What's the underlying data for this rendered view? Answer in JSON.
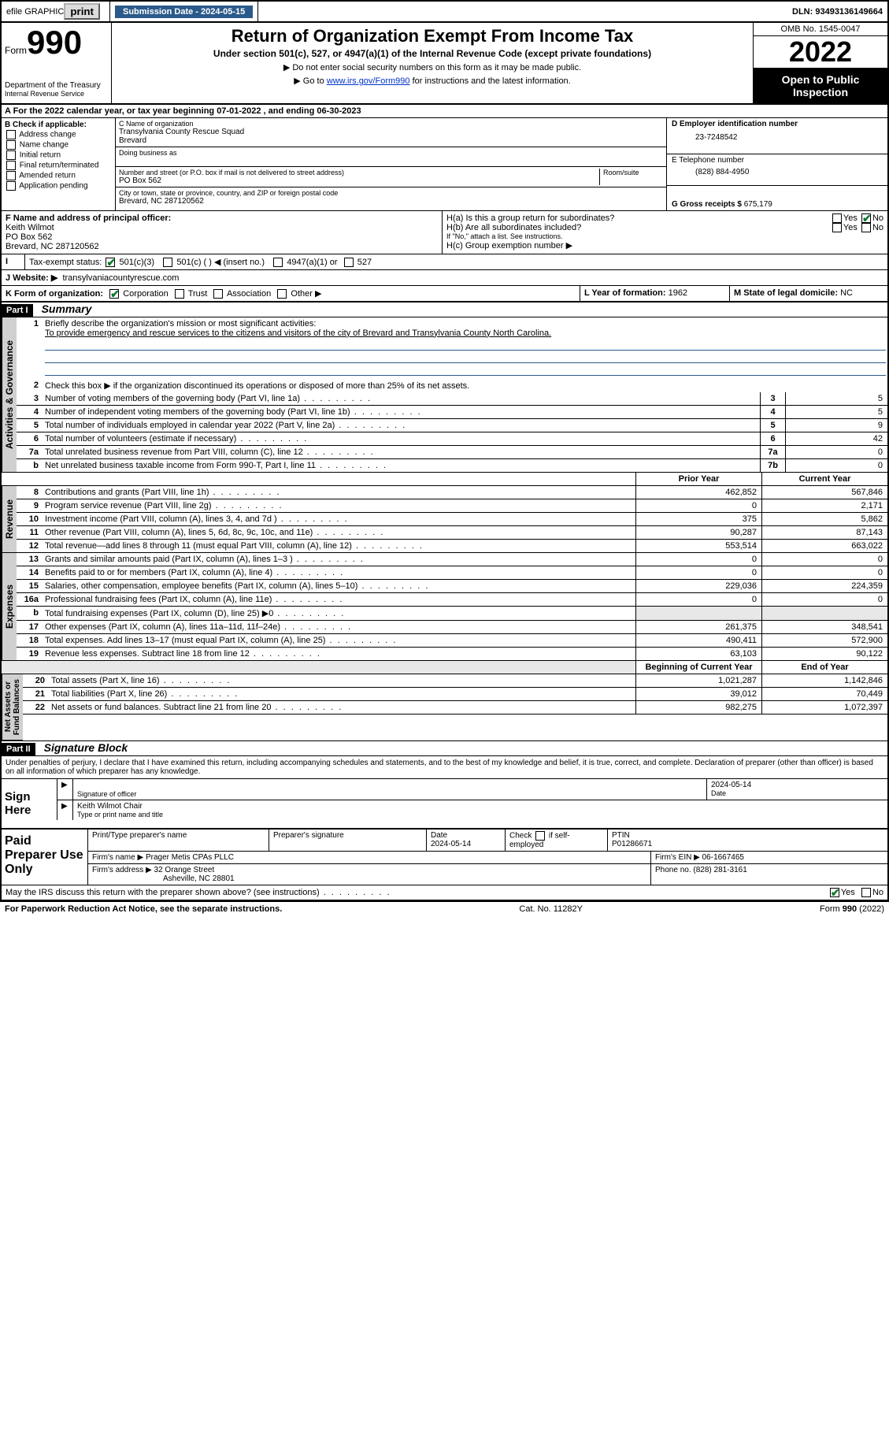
{
  "topbar": {
    "efile": "efile GRAPHIC",
    "print": "print",
    "sub_label": "Submission Date - 2024-05-15",
    "dln": "DLN: 93493136149664"
  },
  "header": {
    "form_word": "Form",
    "form_num": "990",
    "dept": "Department of the Treasury",
    "irs": "Internal Revenue Service",
    "title": "Return of Organization Exempt From Income Tax",
    "sub1": "Under section 501(c), 527, or 4947(a)(1) of the Internal Revenue Code (except private foundations)",
    "sub2": "▶ Do not enter social security numbers on this form as it may be made public.",
    "sub3_pre": "▶ Go to ",
    "sub3_link": "www.irs.gov/Form990",
    "sub3_post": " for instructions and the latest information.",
    "omb": "OMB No. 1545-0047",
    "year": "2022",
    "open_pub": "Open to Public Inspection"
  },
  "rowA": "A For the 2022 calendar year, or tax year beginning 07-01-2022    , and ending 06-30-2023",
  "blkB": {
    "title": "B Check if applicable:",
    "items": [
      "Address change",
      "Name change",
      "Initial return",
      "Final return/terminated",
      "Amended return",
      "Application pending"
    ]
  },
  "blkC": {
    "c_label": "C Name of organization",
    "org1": "Transylvania County Rescue Squad",
    "org2": "Brevard",
    "dba_label": "Doing business as",
    "addr_label": "Number and street (or P.O. box if mail is not delivered to street address)",
    "room_label": "Room/suite",
    "addr": "PO Box 562",
    "city_label": "City or town, state or province, country, and ZIP or foreign postal code",
    "city": "Brevard, NC  287120562"
  },
  "blkD": {
    "d_label": "D Employer identification number",
    "ein": "23-7248542",
    "e_label": "E Telephone number",
    "phone": "(828) 884-4950",
    "g_label": "G Gross receipts $",
    "gross": "675,179"
  },
  "rowF": {
    "f_label": "F Name and address of principal officer:",
    "f1": "Keith Wilmot",
    "f2": "PO Box 562",
    "f3": "Brevard, NC  287120562",
    "ha": "H(a)  Is this a group return for subordinates?",
    "hb": "H(b)  Are all subordinates included?",
    "hb_note": "If \"No,\" attach a list. See instructions.",
    "hc": "H(c)  Group exemption number ▶",
    "yes": "Yes",
    "no": "No"
  },
  "rowI": {
    "i_label": "Tax-exempt status:",
    "opts": [
      "501(c)(3)",
      "501(c) (  ) ◀ (insert no.)",
      "4947(a)(1) or",
      "527"
    ]
  },
  "rowJ": {
    "j_label": "J  Website: ▶",
    "site": "transylvaniacountyrescue.com"
  },
  "rowK": {
    "k_label": "K Form of organization:",
    "opts": [
      "Corporation",
      "Trust",
      "Association",
      "Other ▶"
    ],
    "l_label": "L Year of formation:",
    "l_val": "1962",
    "m_label": "M State of legal domicile:",
    "m_val": "NC"
  },
  "part1": {
    "hdr": "Part I",
    "title": "Summary",
    "q1": "Briefly describe the organization's mission or most significant activities:",
    "mission": "To provide emergency and rescue services to the citizens and visitors of the city of Brevard and Transylvania County North Carolina.",
    "q2": "Check this box ▶      if the organization discontinued its operations or disposed of more than 25% of its net assets.",
    "lines_gov": [
      {
        "n": "3",
        "t": "Number of voting members of the governing body (Part VI, line 1a)",
        "box": "3",
        "v": "5"
      },
      {
        "n": "4",
        "t": "Number of independent voting members of the governing body (Part VI, line 1b)",
        "box": "4",
        "v": "5"
      },
      {
        "n": "5",
        "t": "Total number of individuals employed in calendar year 2022 (Part V, line 2a)",
        "box": "5",
        "v": "9"
      },
      {
        "n": "6",
        "t": "Total number of volunteers (estimate if necessary)",
        "box": "6",
        "v": "42"
      },
      {
        "n": "7a",
        "t": "Total unrelated business revenue from Part VIII, column (C), line 12",
        "box": "7a",
        "v": "0"
      },
      {
        "n": "b",
        "t": "Net unrelated business taxable income from Form 990-T, Part I, line 11",
        "box": "7b",
        "v": "0"
      }
    ],
    "col_prior": "Prior Year",
    "col_current": "Current Year",
    "rev": [
      {
        "n": "8",
        "t": "Contributions and grants (Part VIII, line 1h)",
        "p": "462,852",
        "c": "567,846"
      },
      {
        "n": "9",
        "t": "Program service revenue (Part VIII, line 2g)",
        "p": "0",
        "c": "2,171"
      },
      {
        "n": "10",
        "t": "Investment income (Part VIII, column (A), lines 3, 4, and 7d )",
        "p": "375",
        "c": "5,862"
      },
      {
        "n": "11",
        "t": "Other revenue (Part VIII, column (A), lines 5, 6d, 8c, 9c, 10c, and 11e)",
        "p": "90,287",
        "c": "87,143"
      },
      {
        "n": "12",
        "t": "Total revenue—add lines 8 through 11 (must equal Part VIII, column (A), line 12)",
        "p": "553,514",
        "c": "663,022"
      }
    ],
    "exp": [
      {
        "n": "13",
        "t": "Grants and similar amounts paid (Part IX, column (A), lines 1–3 )",
        "p": "0",
        "c": "0"
      },
      {
        "n": "14",
        "t": "Benefits paid to or for members (Part IX, column (A), line 4)",
        "p": "0",
        "c": "0"
      },
      {
        "n": "15",
        "t": "Salaries, other compensation, employee benefits (Part IX, column (A), lines 5–10)",
        "p": "229,036",
        "c": "224,359"
      },
      {
        "n": "16a",
        "t": "Professional fundraising fees (Part IX, column (A), line 11e)",
        "p": "0",
        "c": "0"
      },
      {
        "n": "b",
        "t": "Total fundraising expenses (Part IX, column (D), line 25) ▶0",
        "p": "",
        "c": ""
      },
      {
        "n": "17",
        "t": "Other expenses (Part IX, column (A), lines 11a–11d, 11f–24e)",
        "p": "261,375",
        "c": "348,541"
      },
      {
        "n": "18",
        "t": "Total expenses. Add lines 13–17 (must equal Part IX, column (A), line 25)",
        "p": "490,411",
        "c": "572,900"
      },
      {
        "n": "19",
        "t": "Revenue less expenses. Subtract line 18 from line 12",
        "p": "63,103",
        "c": "90,122"
      }
    ],
    "col_beg": "Beginning of Current Year",
    "col_end": "End of Year",
    "net": [
      {
        "n": "20",
        "t": "Total assets (Part X, line 16)",
        "p": "1,021,287",
        "c": "1,142,846"
      },
      {
        "n": "21",
        "t": "Total liabilities (Part X, line 26)",
        "p": "39,012",
        "c": "70,449"
      },
      {
        "n": "22",
        "t": "Net assets or fund balances. Subtract line 21 from line 20",
        "p": "982,275",
        "c": "1,072,397"
      }
    ]
  },
  "part2": {
    "hdr": "Part II",
    "title": "Signature Block",
    "decl": "Under penalties of perjury, I declare that I have examined this return, including accompanying schedules and statements, and to the best of my knowledge and belief, it is true, correct, and complete. Declaration of preparer (other than officer) is based on all information of which preparer has any knowledge."
  },
  "sign": {
    "label": "Sign Here",
    "sig_label": "Signature of officer",
    "date_label": "Date",
    "date": "2024-05-14",
    "name": "Keith Wilmot Chair",
    "name_label": "Type or print name and title"
  },
  "prep": {
    "label": "Paid Preparer Use Only",
    "h1": "Print/Type preparer's name",
    "h2": "Preparer's signature",
    "h3": "Date",
    "date": "2024-05-14",
    "h4": "Check        if self-employed",
    "h5": "PTIN",
    "ptin": "P01286671",
    "firm_label": "Firm's name   ▶",
    "firm": "Prager Metis CPAs PLLC",
    "ein_label": "Firm's EIN ▶",
    "ein": "06-1667465",
    "addr_label": "Firm's address ▶",
    "addr1": "32 Orange Street",
    "addr2": "Asheville, NC  28801",
    "phone_label": "Phone no.",
    "phone": "(828) 281-3161"
  },
  "footer": {
    "discuss": "May the IRS discuss this return with the preparer shown above? (see instructions)",
    "yes": "Yes",
    "no": "No",
    "pra": "For Paperwork Reduction Act Notice, see the separate instructions.",
    "cat": "Cat. No. 11282Y",
    "form": "Form 990 (2022)"
  },
  "colors": {
    "link": "#0033cc",
    "check": "#0a7a2a",
    "bar": "#2a5a8a"
  }
}
